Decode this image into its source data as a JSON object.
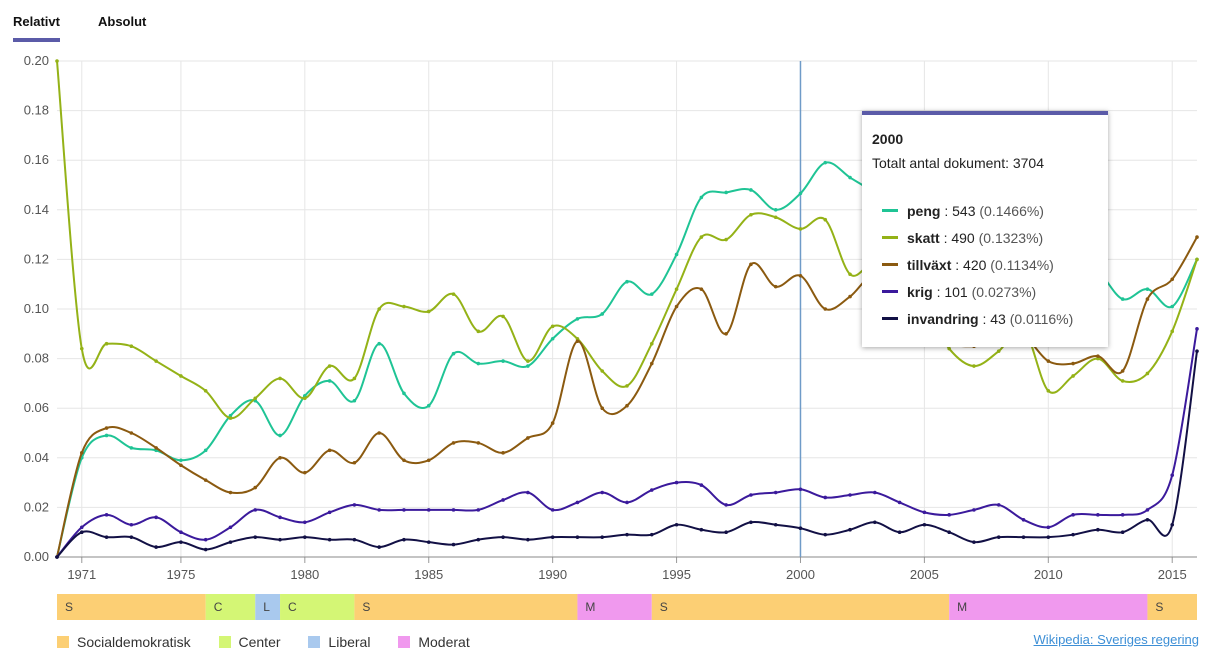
{
  "tabs": [
    {
      "label": "Relativt",
      "active": true
    },
    {
      "label": "Absolut",
      "active": false
    }
  ],
  "chart_data": {
    "type": "line",
    "title": "",
    "xlabel": "",
    "ylabel": "",
    "xlim": [
      1970,
      2016
    ],
    "ylim": [
      0,
      0.2
    ],
    "x_ticks": [
      1971,
      1975,
      1980,
      1985,
      1990,
      1995,
      2000,
      2005,
      2010,
      2015
    ],
    "y_ticks": [
      "0.00",
      "0.02",
      "0.04",
      "0.06",
      "0.08",
      "0.10",
      "0.12",
      "0.14",
      "0.16",
      "0.18",
      "0.20"
    ],
    "grid": true,
    "crosshair_x": 2000,
    "x": [
      1970,
      1971,
      1972,
      1973,
      1974,
      1975,
      1976,
      1977,
      1978,
      1979,
      1980,
      1981,
      1982,
      1983,
      1984,
      1985,
      1986,
      1987,
      1988,
      1989,
      1990,
      1991,
      1992,
      1993,
      1994,
      1995,
      1996,
      1997,
      1998,
      1999,
      2000,
      2001,
      2002,
      2003,
      2004,
      2005,
      2006,
      2007,
      2008,
      2009,
      2010,
      2011,
      2012,
      2013,
      2014,
      2015,
      2016
    ],
    "series": [
      {
        "name": "peng",
        "color": "#1fc495",
        "values": [
          0.0,
          0.04,
          0.049,
          0.044,
          0.043,
          0.039,
          0.043,
          0.057,
          0.063,
          0.049,
          0.065,
          0.071,
          0.063,
          0.086,
          0.066,
          0.061,
          0.082,
          0.078,
          0.079,
          0.077,
          0.088,
          0.096,
          0.098,
          0.111,
          0.106,
          0.122,
          0.145,
          0.147,
          0.148,
          0.14,
          0.1466,
          0.159,
          0.153,
          0.146,
          0.132,
          0.124,
          0.118,
          0.113,
          0.112,
          0.114,
          0.112,
          0.116,
          0.115,
          0.104,
          0.108,
          0.101,
          0.12
        ]
      },
      {
        "name": "skatt",
        "color": "#94b217",
        "values": [
          0.2,
          0.084,
          0.086,
          0.085,
          0.079,
          0.073,
          0.067,
          0.056,
          0.064,
          0.072,
          0.064,
          0.077,
          0.072,
          0.1,
          0.101,
          0.099,
          0.106,
          0.091,
          0.097,
          0.079,
          0.093,
          0.088,
          0.075,
          0.069,
          0.086,
          0.108,
          0.129,
          0.128,
          0.138,
          0.137,
          0.1323,
          0.136,
          0.114,
          0.118,
          0.104,
          0.101,
          0.084,
          0.077,
          0.083,
          0.092,
          0.067,
          0.073,
          0.08,
          0.071,
          0.074,
          0.091,
          0.12
        ]
      },
      {
        "name": "tillväxt",
        "color": "#8b5a10",
        "values": [
          0.0,
          0.042,
          0.052,
          0.05,
          0.044,
          0.037,
          0.031,
          0.026,
          0.028,
          0.04,
          0.034,
          0.043,
          0.038,
          0.05,
          0.039,
          0.039,
          0.046,
          0.046,
          0.042,
          0.048,
          0.054,
          0.087,
          0.06,
          0.061,
          0.078,
          0.101,
          0.108,
          0.09,
          0.118,
          0.109,
          0.1134,
          0.1,
          0.105,
          0.114,
          0.105,
          0.1,
          0.087,
          0.085,
          0.087,
          0.089,
          0.079,
          0.078,
          0.081,
          0.075,
          0.104,
          0.112,
          0.129
        ]
      },
      {
        "name": "krig",
        "color": "#3b1a9c",
        "values": [
          0.0,
          0.012,
          0.017,
          0.013,
          0.016,
          0.01,
          0.007,
          0.012,
          0.019,
          0.016,
          0.014,
          0.018,
          0.021,
          0.019,
          0.019,
          0.019,
          0.019,
          0.019,
          0.023,
          0.026,
          0.019,
          0.022,
          0.026,
          0.022,
          0.027,
          0.03,
          0.029,
          0.021,
          0.025,
          0.026,
          0.0273,
          0.024,
          0.025,
          0.026,
          0.022,
          0.018,
          0.017,
          0.019,
          0.021,
          0.015,
          0.012,
          0.017,
          0.017,
          0.017,
          0.019,
          0.033,
          0.092
        ]
      },
      {
        "name": "invandring",
        "color": "#121045",
        "values": [
          0.0,
          0.01,
          0.008,
          0.008,
          0.004,
          0.006,
          0.003,
          0.006,
          0.008,
          0.007,
          0.008,
          0.007,
          0.007,
          0.004,
          0.007,
          0.006,
          0.005,
          0.007,
          0.008,
          0.007,
          0.008,
          0.008,
          0.008,
          0.009,
          0.009,
          0.013,
          0.011,
          0.01,
          0.014,
          0.013,
          0.0116,
          0.009,
          0.011,
          0.014,
          0.01,
          0.013,
          0.01,
          0.006,
          0.008,
          0.008,
          0.008,
          0.009,
          0.011,
          0.01,
          0.015,
          0.013,
          0.083
        ]
      }
    ]
  },
  "government_periods": [
    {
      "label": "S",
      "start": 1970,
      "end": 1976,
      "party": "social"
    },
    {
      "label": "C",
      "start": 1976,
      "end": 1978,
      "party": "center"
    },
    {
      "label": "L",
      "start": 1978,
      "end": 1979,
      "party": "liberal"
    },
    {
      "label": "C",
      "start": 1979,
      "end": 1982,
      "party": "center"
    },
    {
      "label": "S",
      "start": 1982,
      "end": 1991,
      "party": "social"
    },
    {
      "label": "M",
      "start": 1991,
      "end": 1994,
      "party": "moderat"
    },
    {
      "label": "S",
      "start": 1994,
      "end": 2006,
      "party": "social"
    },
    {
      "label": "M",
      "start": 2006,
      "end": 2014,
      "party": "moderat"
    },
    {
      "label": "S",
      "start": 2014,
      "end": 2016,
      "party": "social"
    }
  ],
  "party_colors": {
    "social": "#fccf74",
    "center": "#d4f675",
    "liberal": "#a9c9ee",
    "moderat": "#f099ee"
  },
  "legend": [
    {
      "label": "Socialdemokratisk",
      "party": "social"
    },
    {
      "label": "Center",
      "party": "center"
    },
    {
      "label": "Liberal",
      "party": "liberal"
    },
    {
      "label": "Moderat",
      "party": "moderat"
    }
  ],
  "source_link": "Wikipedia: Sveriges regering",
  "tooltip": {
    "year": "2000",
    "total": "Totalt antal dokument: 3704",
    "rows": [
      {
        "name": "peng",
        "count": " : 543 ",
        "pct": "(0.1466%)",
        "color": "#1fc495"
      },
      {
        "name": "skatt",
        "count": " : 490 ",
        "pct": "(0.1323%)",
        "color": "#94b217"
      },
      {
        "name": "tillväxt",
        "count": " : 420 ",
        "pct": "(0.1134%)",
        "color": "#8b5a10"
      },
      {
        "name": "krig",
        "count": " : 101 ",
        "pct": "(0.0273%)",
        "color": "#3b1a9c"
      },
      {
        "name": "invandring",
        "count": " : 43 ",
        "pct": "(0.0116%)",
        "color": "#121045"
      }
    ]
  }
}
